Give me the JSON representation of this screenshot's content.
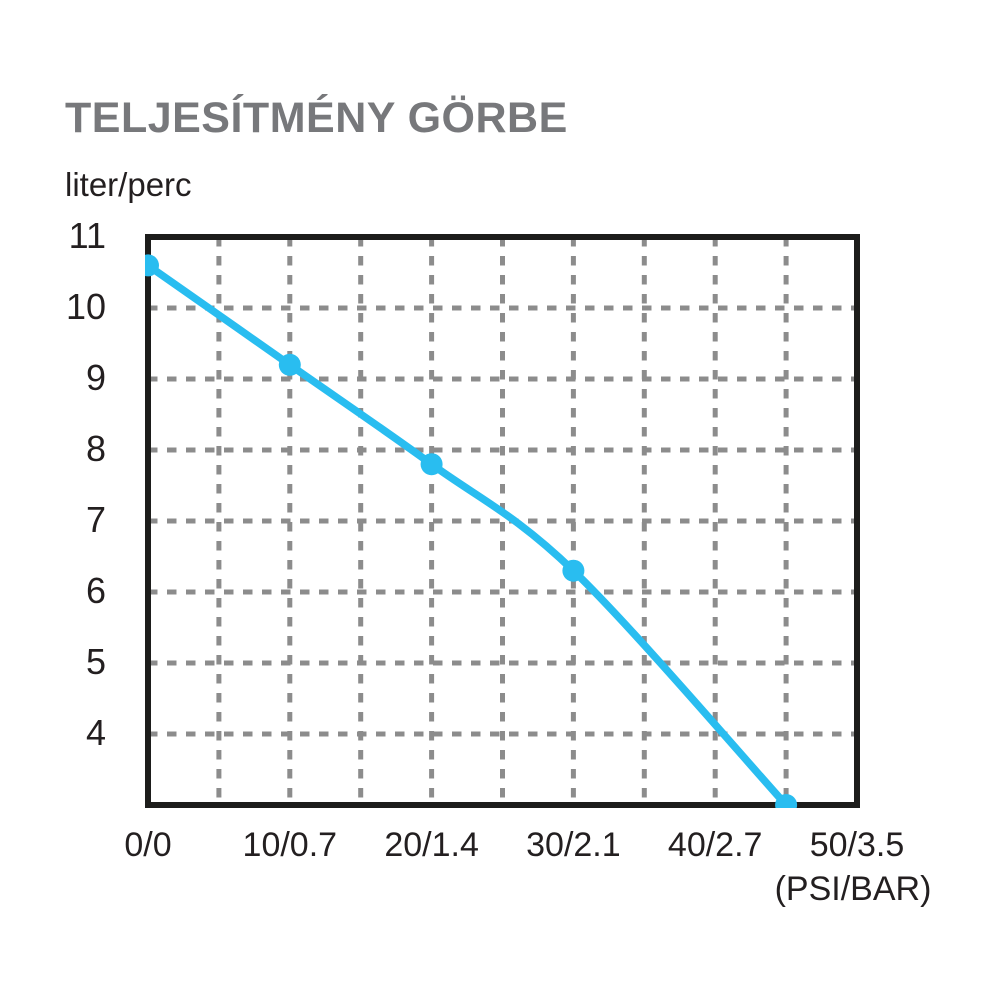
{
  "chart_data": {
    "type": "line",
    "title": "TELJESÍTMÉNY GÖRBE",
    "ylabel": "liter/perc",
    "x_unit_label": "(PSI/BAR)",
    "series": [
      {
        "name": "teljesitmeny-gorbe",
        "x": [
          0,
          10,
          20,
          30,
          45
        ],
        "y": [
          10.6,
          9.2,
          7.8,
          6.3,
          3.0
        ]
      }
    ],
    "xlim": [
      0,
      50
    ],
    "ylim": [
      3,
      11
    ],
    "xticks": {
      "values": [
        0,
        10,
        20,
        30,
        40,
        50
      ],
      "labels": [
        "0/0",
        "10/0.7",
        "20/1.4",
        "30/2.1",
        "40/2.7",
        "50/3.5"
      ]
    },
    "yticks": {
      "values": [
        11,
        10,
        9,
        8,
        7,
        6,
        5,
        4
      ],
      "labels": [
        "11",
        "10",
        "9",
        "8",
        "7",
        "6",
        "5",
        "4"
      ]
    },
    "grid": {
      "style": "dashed",
      "x_step": 5,
      "y_step": 1
    },
    "legend": "none",
    "colors": {
      "line": "#29bdf0",
      "marker": "#29bdf0",
      "grid": "#8c8c8c",
      "frame": "#1d1d1b",
      "title": "#77787b",
      "tick_text": "#231f20"
    }
  }
}
